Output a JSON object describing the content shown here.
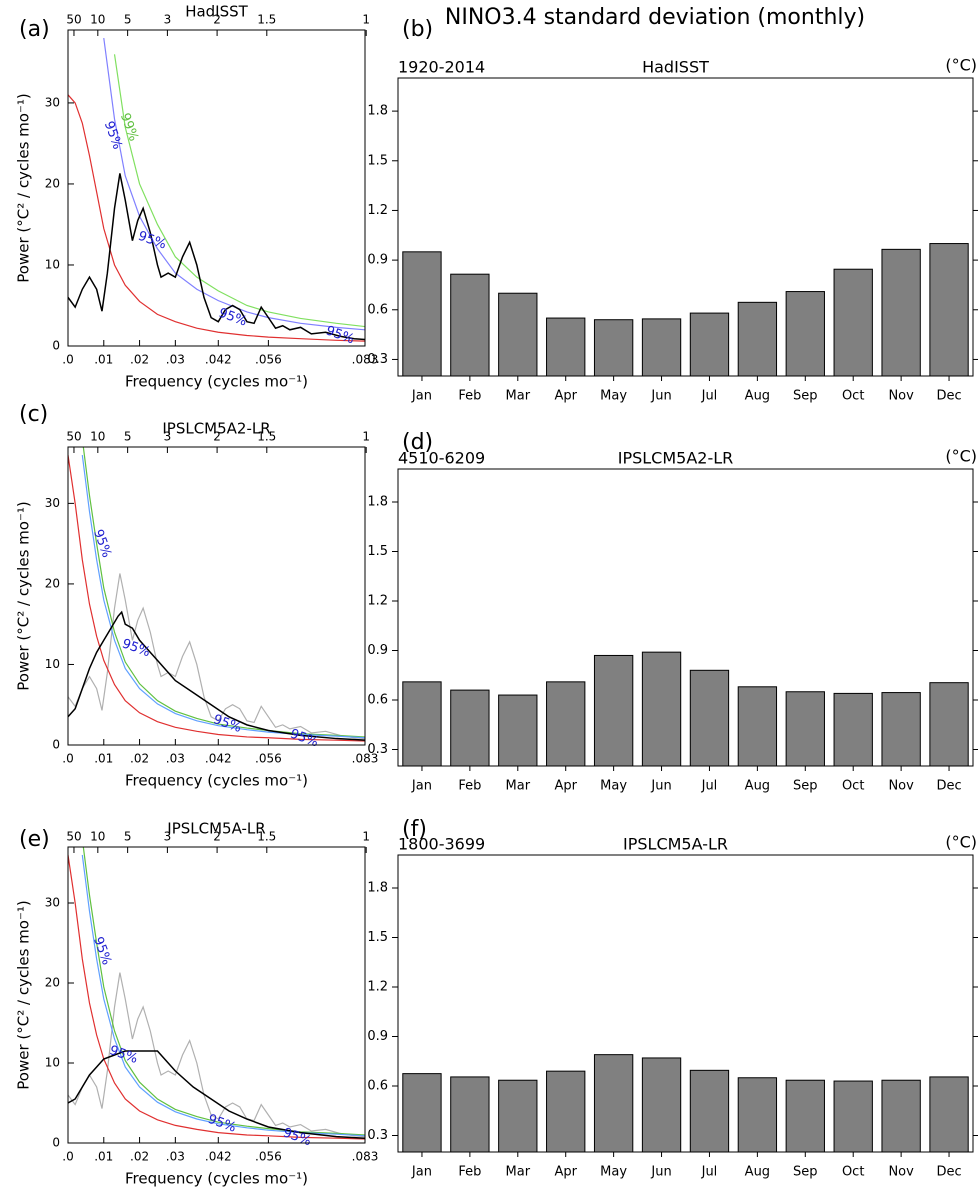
{
  "title": "NINO3.4 standard deviation (monthly)",
  "chart_data": [
    {
      "type": "line",
      "panel": "(a)",
      "title": "HadISST",
      "xlabel": "Frequency (cycles mo⁻¹)",
      "ylabel": "Power (°C² / cycles mo⁻¹)",
      "xlim": [
        0,
        0.083
      ],
      "xticks": [
        {
          "value": 0,
          "label": ".0"
        },
        {
          "value": 0.01,
          "label": ".01"
        },
        {
          "value": 0.02,
          "label": ".02"
        },
        {
          "value": 0.03,
          "label": ".03"
        },
        {
          "value": 0.042,
          "label": ".042"
        },
        {
          "value": 0.056,
          "label": ".056"
        },
        {
          "value": 0.083,
          "label": ".083"
        }
      ],
      "x2ticks": [
        50,
        10,
        5,
        3,
        2,
        1.5,
        1
      ],
      "ylim": [
        0,
        39
      ],
      "yticks": [
        0,
        10,
        20,
        30
      ],
      "series": [
        {
          "color": "#e03030",
          "x": [
            0,
            0.002,
            0.004,
            0.006,
            0.008,
            0.01,
            0.013,
            0.016,
            0.02,
            0.025,
            0.03,
            0.036,
            0.042,
            0.05,
            0.056,
            0.065,
            0.075,
            0.083
          ],
          "values": [
            31,
            30,
            27.5,
            23.5,
            19,
            14.5,
            10,
            7.5,
            5.5,
            3.9,
            3.0,
            2.2,
            1.7,
            1.3,
            1.1,
            0.9,
            0.7,
            0.6
          ]
        },
        {
          "color": "#8080ff",
          "x": [
            0,
            0.002,
            0.004,
            0.006,
            0.008,
            0.01,
            0.013,
            0.016,
            0.02,
            0.025,
            0.03,
            0.036,
            0.042,
            0.05,
            0.056,
            0.065,
            0.075,
            0.083
          ],
          "values": [
            null,
            null,
            null,
            null,
            null,
            38,
            28,
            21,
            16,
            12,
            9,
            7,
            5.6,
            4.2,
            3.5,
            2.8,
            2.3,
            2.0
          ]
        },
        {
          "color": "#80e060",
          "x": [
            0,
            0.002,
            0.004,
            0.006,
            0.008,
            0.01,
            0.013,
            0.016,
            0.02,
            0.025,
            0.03,
            0.036,
            0.042,
            0.05,
            0.056,
            0.065,
            0.075,
            0.083
          ],
          "values": [
            null,
            null,
            null,
            null,
            null,
            null,
            36,
            27,
            20,
            15,
            11,
            8.5,
            6.8,
            5.0,
            4.2,
            3.4,
            2.8,
            2.4
          ]
        },
        {
          "color": "#000000",
          "x": [
            0,
            0.002,
            0.004,
            0.006,
            0.008,
            0.0095,
            0.011,
            0.013,
            0.0145,
            0.016,
            0.018,
            0.0195,
            0.021,
            0.023,
            0.025,
            0.026,
            0.028,
            0.03,
            0.032,
            0.034,
            0.036,
            0.038,
            0.04,
            0.042,
            0.044,
            0.046,
            0.048,
            0.05,
            0.052,
            0.054,
            0.056,
            0.058,
            0.06,
            0.062,
            0.065,
            0.068,
            0.072,
            0.076,
            0.08,
            0.083
          ],
          "values": [
            6,
            4.8,
            7,
            8.5,
            7,
            4.3,
            9,
            17,
            21.3,
            18,
            13,
            15.5,
            17,
            14,
            10,
            8.5,
            9,
            8.5,
            11,
            12.8,
            10,
            6,
            3.5,
            3,
            4.5,
            5,
            4.5,
            3,
            2.8,
            4.8,
            3.5,
            2.2,
            2.5,
            2,
            2.3,
            1.5,
            1.7,
            1.2,
            0.9,
            0.8
          ]
        }
      ],
      "annotations": [
        {
          "text": "95%",
          "x": 0.0125,
          "y": 26,
          "color": "#2020d0"
        },
        {
          "text": "99%",
          "x": 0.017,
          "y": 27,
          "color": "#60c040"
        },
        {
          "text": "95%",
          "x": 0.0235,
          "y": 13,
          "color": "#2020d0"
        },
        {
          "text": "95%",
          "x": 0.046,
          "y": 3.5,
          "color": "#2020d0"
        },
        {
          "text": "95%",
          "x": 0.076,
          "y": 1.3,
          "color": "#2020d0"
        }
      ]
    },
    {
      "type": "bar",
      "panel": "(b)",
      "left_title": "1920-2014",
      "title": "HadISST",
      "unit": "(°C)",
      "categories": [
        "Jan",
        "Feb",
        "Mar",
        "Apr",
        "May",
        "Jun",
        "Jul",
        "Aug",
        "Sep",
        "Oct",
        "Nov",
        "Dec"
      ],
      "values": [
        0.95,
        0.815,
        0.7,
        0.55,
        0.54,
        0.545,
        0.58,
        0.645,
        0.71,
        0.845,
        0.965,
        1.0
      ],
      "color": "#808080",
      "ylim": [
        0.2,
        2.0
      ],
      "yticks": [
        0.3,
        0.6,
        0.9,
        1.2,
        1.5,
        1.8
      ]
    },
    {
      "type": "line",
      "panel": "(c)",
      "title": "IPSLCM5A2-LR",
      "xlabel": "Frequency (cycles mo⁻¹)",
      "ylabel": "Power (°C² / cycles mo⁻¹)",
      "xlim": [
        0,
        0.083
      ],
      "xticks": [
        {
          "value": 0,
          "label": ".0"
        },
        {
          "value": 0.01,
          "label": ".01"
        },
        {
          "value": 0.02,
          "label": ".02"
        },
        {
          "value": 0.03,
          "label": ".03"
        },
        {
          "value": 0.042,
          "label": ".042"
        },
        {
          "value": 0.056,
          "label": ".056"
        },
        {
          "value": 0.083,
          "label": ".083"
        }
      ],
      "x2ticks": [
        50,
        10,
        5,
        3,
        2,
        1.5,
        1
      ],
      "ylim": [
        0,
        37
      ],
      "yticks": [
        0,
        10,
        20,
        30
      ],
      "series": [
        {
          "color": "#b0b0b0",
          "x": [
            0,
            0.002,
            0.004,
            0.006,
            0.008,
            0.0095,
            0.011,
            0.013,
            0.0145,
            0.016,
            0.018,
            0.0195,
            0.021,
            0.023,
            0.025,
            0.026,
            0.028,
            0.03,
            0.032,
            0.034,
            0.036,
            0.038,
            0.04,
            0.042,
            0.044,
            0.046,
            0.048,
            0.05,
            0.052,
            0.054,
            0.056,
            0.058,
            0.06,
            0.062,
            0.065,
            0.068,
            0.072,
            0.076,
            0.08,
            0.083
          ],
          "values": [
            6,
            4.8,
            7,
            8.5,
            7,
            4.3,
            9,
            17,
            21.3,
            18,
            13,
            15.5,
            17,
            14,
            10,
            8.5,
            9,
            8.5,
            11,
            12.8,
            10,
            6,
            3.5,
            3,
            4.5,
            5,
            4.5,
            3,
            2.8,
            4.8,
            3.5,
            2.2,
            2.5,
            2,
            2.3,
            1.5,
            1.7,
            1.2,
            0.9,
            0.8
          ]
        },
        {
          "color": "#e03030",
          "x": [
            0,
            0.002,
            0.004,
            0.006,
            0.008,
            0.01,
            0.013,
            0.016,
            0.02,
            0.025,
            0.03,
            0.036,
            0.042,
            0.05,
            0.056,
            0.065,
            0.075,
            0.083
          ],
          "values": [
            36,
            30,
            23,
            17.5,
            13.5,
            10.5,
            7.5,
            5.5,
            4,
            2.9,
            2.2,
            1.7,
            1.3,
            1.0,
            0.9,
            0.7,
            0.6,
            0.5
          ]
        },
        {
          "color": "#60c040",
          "x": [
            0,
            0.002,
            0.004,
            0.006,
            0.008,
            0.01,
            0.013,
            0.016,
            0.02,
            0.025,
            0.03,
            0.036,
            0.042,
            0.05,
            0.056,
            0.065,
            0.075,
            0.083
          ],
          "values": [
            null,
            null,
            38,
            31,
            25,
            19.5,
            14,
            10.3,
            7.6,
            5.5,
            4.2,
            3.3,
            2.6,
            2.1,
            1.8,
            1.4,
            1.2,
            1.0
          ]
        },
        {
          "color": "#60a0ff",
          "x": [
            0,
            0.002,
            0.004,
            0.006,
            0.008,
            0.01,
            0.013,
            0.016,
            0.02,
            0.025,
            0.03,
            0.036,
            0.042,
            0.05,
            0.056,
            0.065,
            0.075,
            0.083
          ],
          "values": [
            null,
            null,
            36,
            29,
            23,
            18,
            13,
            9.5,
            7,
            5.1,
            3.9,
            3.0,
            2.4,
            1.9,
            1.6,
            1.3,
            1.1,
            0.9
          ]
        },
        {
          "color": "#000000",
          "x": [
            0,
            0.002,
            0.004,
            0.006,
            0.008,
            0.01,
            0.012,
            0.014,
            0.015,
            0.016,
            0.018,
            0.02,
            0.022,
            0.025,
            0.028,
            0.03,
            0.035,
            0.04,
            0.045,
            0.05,
            0.056,
            0.065,
            0.075,
            0.083
          ],
          "values": [
            3.5,
            4.5,
            7,
            9.5,
            11.5,
            13,
            14.5,
            16,
            16.5,
            15,
            14.5,
            13,
            12,
            10.5,
            9,
            8,
            6.5,
            5,
            3.5,
            2.5,
            1.8,
            1.2,
            0.8,
            0.6
          ]
        }
      ],
      "annotations": [
        {
          "text": "95%",
          "x": 0.0095,
          "y": 25,
          "color": "#2020d0"
        },
        {
          "text": "95%",
          "x": 0.019,
          "y": 12,
          "color": "#2020d0"
        },
        {
          "text": "95%",
          "x": 0.0445,
          "y": 2.6,
          "color": "#2020d0"
        },
        {
          "text": "95%",
          "x": 0.066,
          "y": 0.8,
          "color": "#2020d0"
        }
      ]
    },
    {
      "type": "bar",
      "panel": "(d)",
      "left_title": "4510-6209",
      "title": "IPSLCM5A2-LR",
      "unit": "(°C)",
      "categories": [
        "Jan",
        "Feb",
        "Mar",
        "Apr",
        "May",
        "Jun",
        "Jul",
        "Aug",
        "Sep",
        "Oct",
        "Nov",
        "Dec"
      ],
      "values": [
        0.71,
        0.66,
        0.63,
        0.71,
        0.87,
        0.89,
        0.78,
        0.68,
        0.65,
        0.64,
        0.645,
        0.705
      ],
      "color": "#808080",
      "ylim": [
        0.2,
        2.0
      ],
      "yticks": [
        0.3,
        0.6,
        0.9,
        1.2,
        1.5,
        1.8
      ]
    },
    {
      "type": "line",
      "panel": "(e)",
      "title": "IPSLCM5A-LR",
      "xlabel": "Frequency (cycles mo⁻¹)",
      "ylabel": "Power (°C² / cycles mo⁻¹)",
      "xlim": [
        0,
        0.083
      ],
      "xticks": [
        {
          "value": 0,
          "label": ".0"
        },
        {
          "value": 0.01,
          "label": ".01"
        },
        {
          "value": 0.02,
          "label": ".02"
        },
        {
          "value": 0.03,
          "label": ".03"
        },
        {
          "value": 0.042,
          "label": ".042"
        },
        {
          "value": 0.056,
          "label": ".056"
        },
        {
          "value": 0.083,
          "label": ".083"
        }
      ],
      "x2ticks": [
        50,
        10,
        5,
        3,
        2,
        1.5,
        1
      ],
      "ylim": [
        0,
        37
      ],
      "yticks": [
        0,
        10,
        20,
        30
      ],
      "series": [
        {
          "color": "#b0b0b0",
          "x": [
            0,
            0.002,
            0.004,
            0.006,
            0.008,
            0.0095,
            0.011,
            0.013,
            0.0145,
            0.016,
            0.018,
            0.0195,
            0.021,
            0.023,
            0.025,
            0.026,
            0.028,
            0.03,
            0.032,
            0.034,
            0.036,
            0.038,
            0.04,
            0.042,
            0.044,
            0.046,
            0.048,
            0.05,
            0.052,
            0.054,
            0.056,
            0.058,
            0.06,
            0.062,
            0.065,
            0.068,
            0.072,
            0.076,
            0.08,
            0.083
          ],
          "values": [
            6,
            4.8,
            7,
            8.5,
            7,
            4.3,
            9,
            17,
            21.3,
            18,
            13,
            15.5,
            17,
            14,
            10,
            8.5,
            9,
            8.5,
            11,
            12.8,
            10,
            6,
            3.5,
            3,
            4.5,
            5,
            4.5,
            3,
            2.8,
            4.8,
            3.5,
            2.2,
            2.5,
            2,
            2.3,
            1.5,
            1.7,
            1.2,
            0.9,
            0.8
          ]
        },
        {
          "color": "#e03030",
          "x": [
            0,
            0.002,
            0.004,
            0.006,
            0.008,
            0.01,
            0.013,
            0.016,
            0.02,
            0.025,
            0.03,
            0.036,
            0.042,
            0.05,
            0.056,
            0.065,
            0.075,
            0.083
          ],
          "values": [
            36,
            30,
            23,
            17.5,
            13.5,
            10.5,
            7.5,
            5.5,
            4,
            2.9,
            2.2,
            1.7,
            1.3,
            1.0,
            0.9,
            0.7,
            0.6,
            0.5
          ]
        },
        {
          "color": "#60c040",
          "x": [
            0,
            0.002,
            0.004,
            0.006,
            0.008,
            0.01,
            0.013,
            0.016,
            0.02,
            0.025,
            0.03,
            0.036,
            0.042,
            0.05,
            0.056,
            0.065,
            0.075,
            0.083
          ],
          "values": [
            null,
            null,
            38,
            31,
            25,
            19.5,
            14,
            10.3,
            7.6,
            5.5,
            4.2,
            3.3,
            2.6,
            2.1,
            1.8,
            1.4,
            1.2,
            1.0
          ]
        },
        {
          "color": "#60a0ff",
          "x": [
            0,
            0.002,
            0.004,
            0.006,
            0.008,
            0.01,
            0.013,
            0.016,
            0.02,
            0.025,
            0.03,
            0.036,
            0.042,
            0.05,
            0.056,
            0.065,
            0.075,
            0.083
          ],
          "values": [
            null,
            null,
            36,
            29,
            23,
            18,
            13,
            9.5,
            7,
            5.1,
            3.9,
            3.0,
            2.4,
            1.9,
            1.6,
            1.3,
            1.1,
            0.9
          ]
        },
        {
          "color": "#000000",
          "x": [
            0,
            0.002,
            0.004,
            0.006,
            0.008,
            0.01,
            0.013,
            0.016,
            0.02,
            0.025,
            0.028,
            0.03,
            0.035,
            0.04,
            0.045,
            0.05,
            0.056,
            0.065,
            0.075,
            0.083
          ],
          "values": [
            5,
            5.5,
            7,
            8.5,
            9.5,
            10.5,
            11,
            11.5,
            11.5,
            11.5,
            10,
            9,
            7,
            5.5,
            4,
            3,
            2,
            1.3,
            0.8,
            0.6
          ]
        }
      ],
      "annotations": [
        {
          "text": "95%",
          "x": 0.0095,
          "y": 24,
          "color": "#2020d0"
        },
        {
          "text": "95%",
          "x": 0.0155,
          "y": 11,
          "color": "#2020d0"
        },
        {
          "text": "95%",
          "x": 0.043,
          "y": 2.4,
          "color": "#2020d0"
        },
        {
          "text": "95%",
          "x": 0.064,
          "y": 0.7,
          "color": "#2020d0"
        }
      ]
    },
    {
      "type": "bar",
      "panel": "(f)",
      "left_title": "1800-3699",
      "title": "IPSLCM5A-LR",
      "unit": "(°C)",
      "categories": [
        "Jan",
        "Feb",
        "Mar",
        "Apr",
        "May",
        "Jun",
        "Jul",
        "Aug",
        "Sep",
        "Oct",
        "Nov",
        "Dec"
      ],
      "values": [
        0.675,
        0.655,
        0.635,
        0.69,
        0.79,
        0.77,
        0.695,
        0.65,
        0.635,
        0.63,
        0.635,
        0.655
      ],
      "color": "#808080",
      "ylim": [
        0.2,
        2.0
      ],
      "yticks": [
        0.3,
        0.6,
        0.9,
        1.2,
        1.5,
        1.8
      ]
    }
  ]
}
